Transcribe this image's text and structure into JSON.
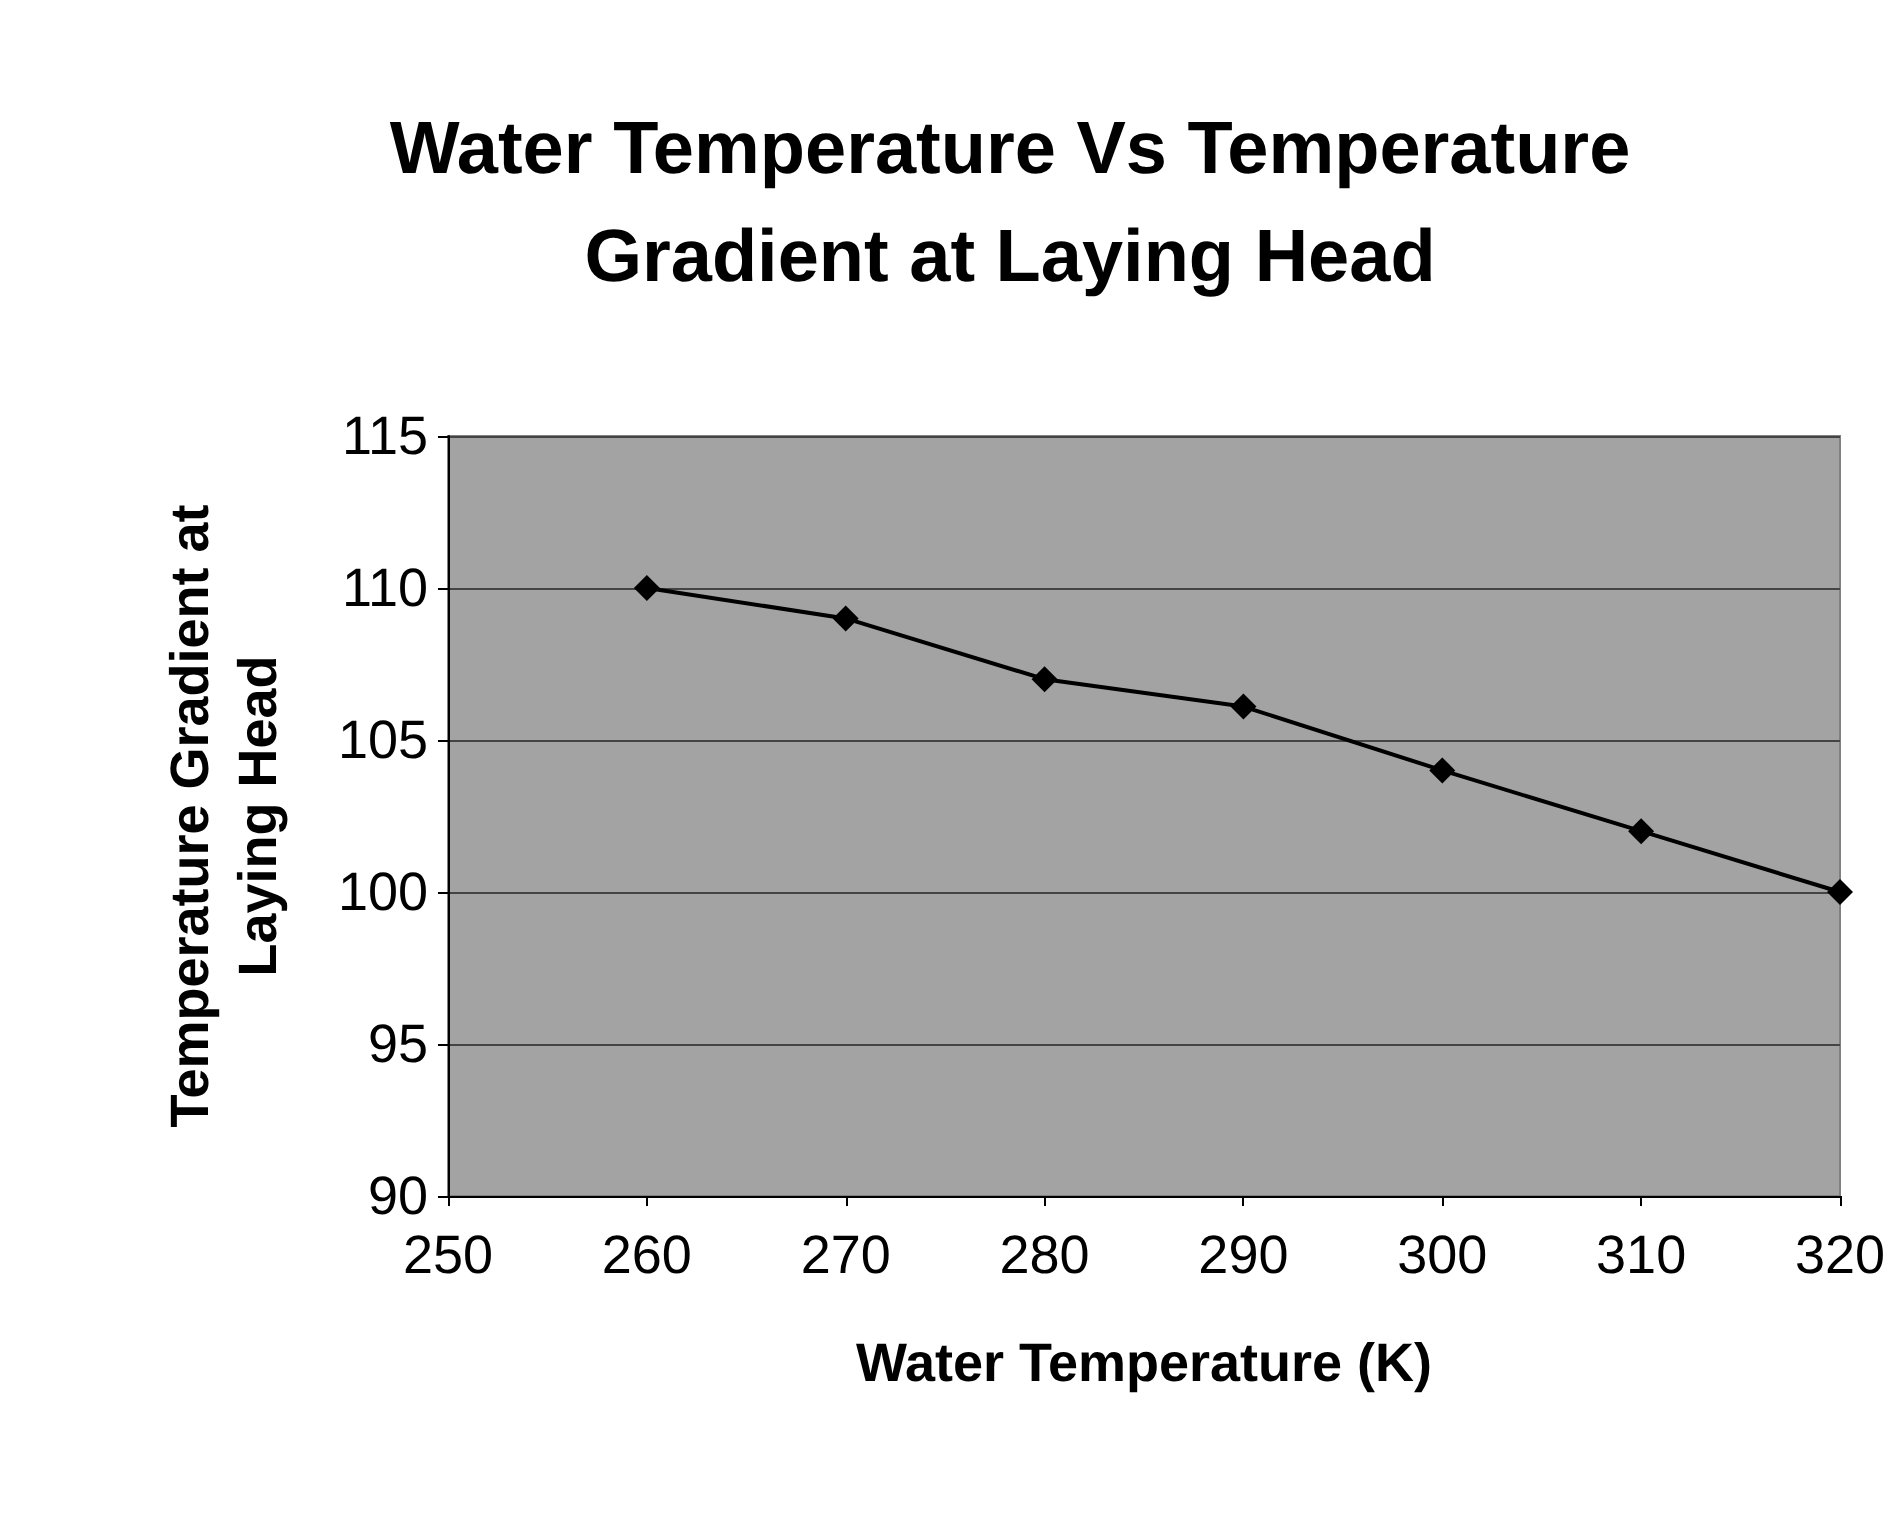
{
  "chart_data": {
    "type": "line",
    "title": "Water Temperature Vs Temperature\nGradient at Laying Head",
    "xlabel": "Water Temperature (K)",
    "ylabel": "Temperature Gradient at\nLaying Head",
    "x": [
      260,
      270,
      280,
      290,
      300,
      310,
      320
    ],
    "series": [
      {
        "color": "#000000",
        "values": [
          110,
          109,
          107,
          106.1,
          104,
          102,
          100
        ]
      }
    ],
    "xlim": [
      250,
      320
    ],
    "xticks": [
      250,
      260,
      270,
      280,
      290,
      300,
      310,
      320
    ],
    "ylim": [
      90,
      115
    ],
    "yticks": [
      90,
      95,
      100,
      105,
      110,
      115
    ],
    "grid": "y",
    "marker": "diamond",
    "line_style": "solid"
  }
}
